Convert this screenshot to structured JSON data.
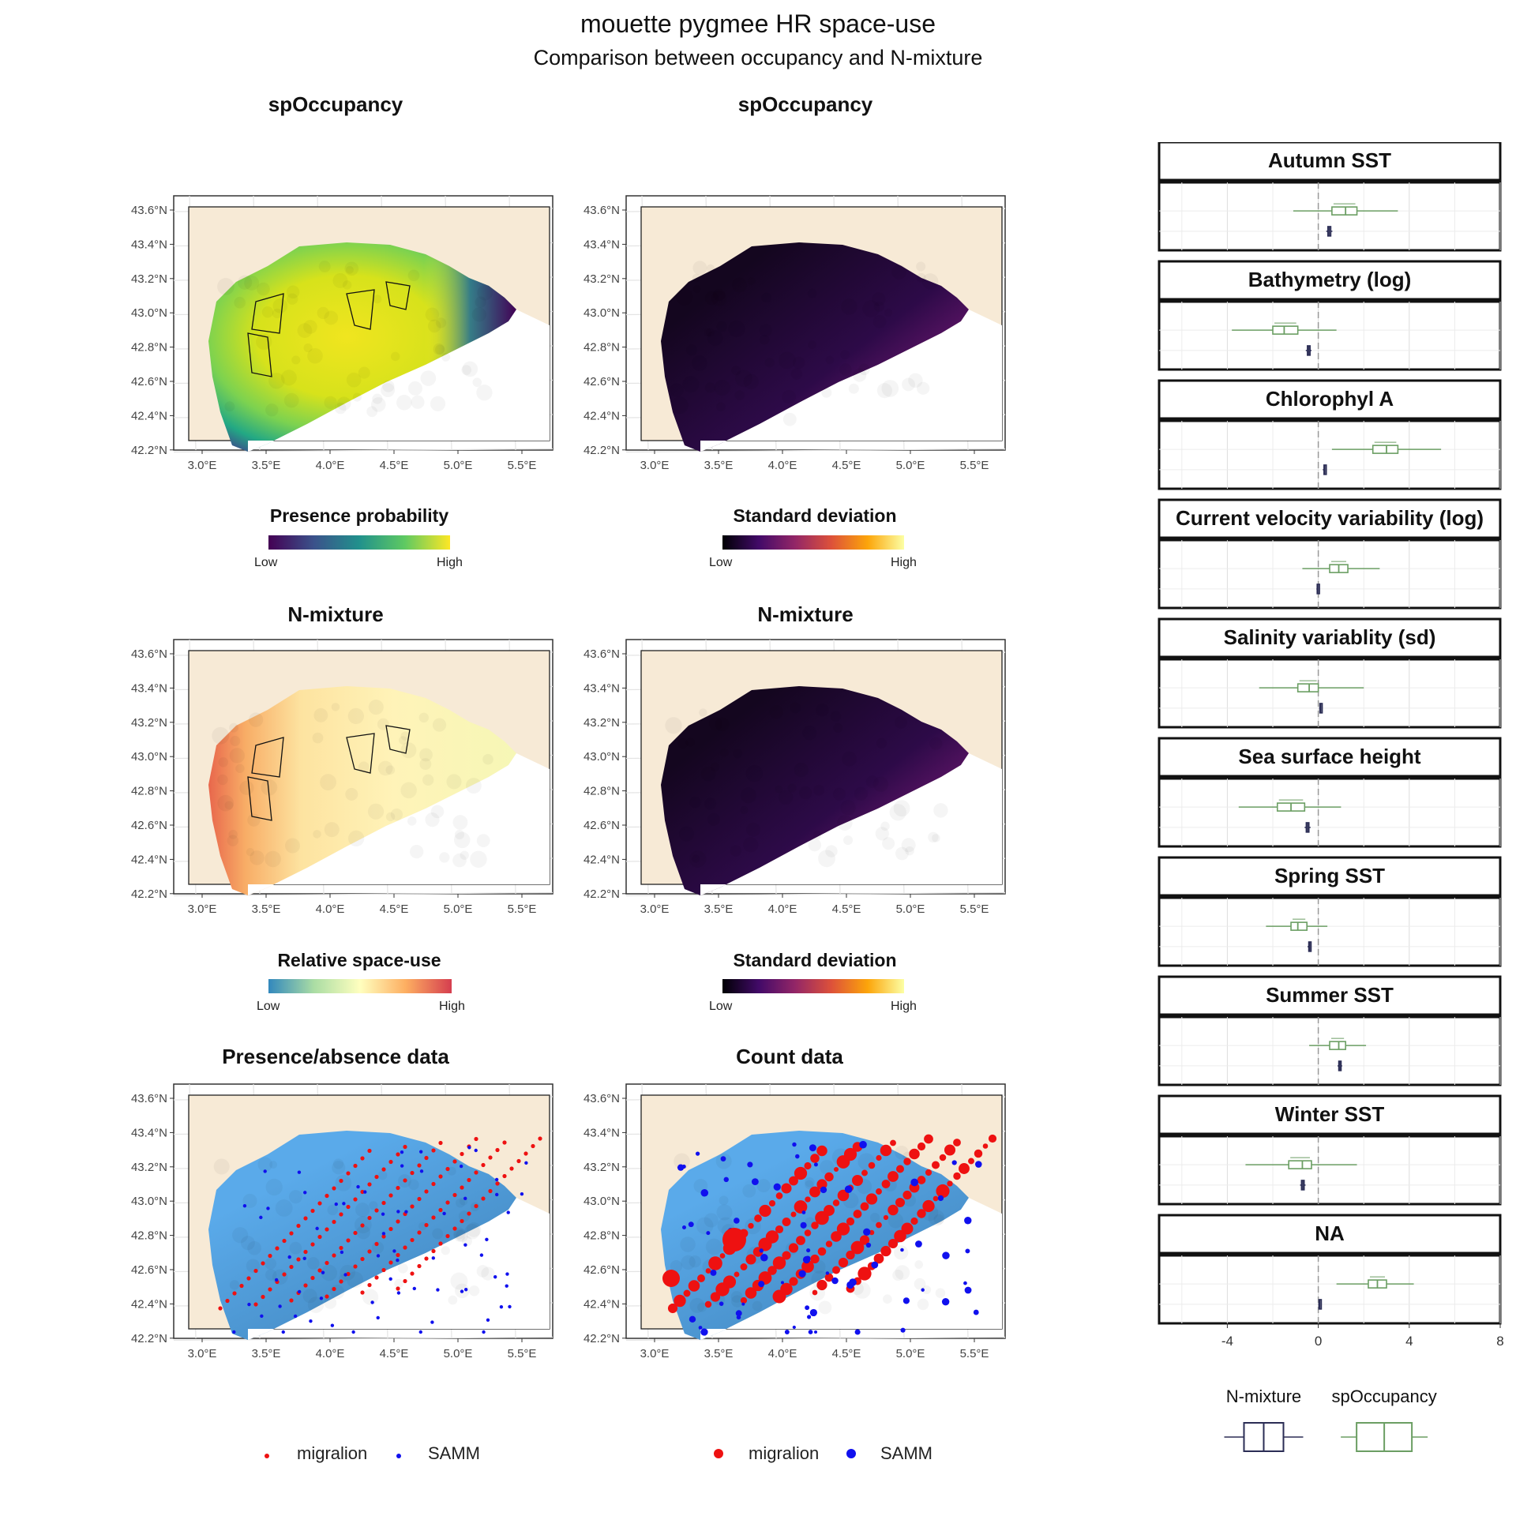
{
  "title": "mouette pygmee HR space-use",
  "subtitle": "Comparison between occupancy and N-mixture",
  "colors": {
    "land": "#f7ead6",
    "occupancy_green": "#6b9e63",
    "nmixture_navy": "#2b2d55",
    "points_red": "#ee1111",
    "points_blue": "#1010ee",
    "grid_blue": "#56a8e6"
  },
  "axes": {
    "lat_ticks": [
      "43.6°N",
      "43.4°N",
      "43.2°N",
      "43.0°N",
      "42.8°N",
      "42.6°N",
      "42.4°N",
      "42.2°N"
    ],
    "lon_ticks": [
      "3.0°E",
      "3.5°E",
      "4.0°E",
      "4.5°E",
      "5.0°E",
      "5.5°E"
    ]
  },
  "maps": [
    {
      "title": "spOccupancy",
      "legend": {
        "title": "Presence probability",
        "low": "Low",
        "high": "High",
        "palette": "viridis"
      }
    },
    {
      "title": "spOccupancy",
      "legend": {
        "title": "Standard deviation",
        "low": "Low",
        "high": "High",
        "palette": "inferno"
      }
    },
    {
      "title": "N-mixture",
      "legend": {
        "title": "Relative space-use",
        "low": "Low",
        "high": "High",
        "palette": "spectral"
      }
    },
    {
      "title": "N-mixture",
      "legend": {
        "title": "Standard deviation",
        "low": "Low",
        "high": "High",
        "palette": "inferno"
      }
    },
    {
      "title": "Presence/absence data",
      "legend": {
        "items": [
          "migralion",
          "SAMM"
        ]
      }
    },
    {
      "title": "Count data",
      "legend": {
        "items": [
          "migralion",
          "SAMM"
        ]
      }
    }
  ],
  "chart_data": {
    "type": "boxplot",
    "x_ticks": [
      -4,
      0,
      4,
      8
    ],
    "xlim": [
      -7,
      8
    ],
    "reference_line": 0,
    "legend": {
      "items": [
        "N-mixture",
        "spOccupancy"
      ],
      "placement": "bottom"
    },
    "facets": [
      {
        "label": "Autumn SST",
        "spOccupancy": {
          "min": -1.1,
          "q1": 0.6,
          "median": 1.2,
          "q3": 1.7,
          "max": 3.5
        },
        "N-mixture": {
          "min": 0.35,
          "q1": 0.42,
          "median": 0.48,
          "q3": 0.55,
          "max": 0.62
        }
      },
      {
        "label": "Bathymetry (log)",
        "spOccupancy": {
          "min": -3.8,
          "q1": -2.0,
          "median": -1.5,
          "q3": -0.9,
          "max": 0.8
        },
        "N-mixture": {
          "min": -0.55,
          "q1": -0.48,
          "median": -0.42,
          "q3": -0.36,
          "max": -0.3
        }
      },
      {
        "label": "Chlorophyl A",
        "spOccupancy": {
          "min": 0.6,
          "q1": 2.4,
          "median": 3.0,
          "q3": 3.5,
          "max": 5.4
        },
        "N-mixture": {
          "min": 0.2,
          "q1": 0.25,
          "median": 0.28,
          "q3": 0.32,
          "max": 0.36
        }
      },
      {
        "label": "Current velocity variability (log)",
        "spOccupancy": {
          "min": -0.7,
          "q1": 0.5,
          "median": 0.9,
          "q3": 1.3,
          "max": 2.7
        },
        "N-mixture": {
          "min": -0.08,
          "q1": -0.05,
          "median": -0.02,
          "q3": 0.01,
          "max": 0.04
        }
      },
      {
        "label": "Salinity variablity (sd)",
        "spOccupancy": {
          "min": -2.6,
          "q1": -0.9,
          "median": -0.4,
          "q3": 0.0,
          "max": 2.0
        },
        "N-mixture": {
          "min": 0.04,
          "q1": 0.07,
          "median": 0.1,
          "q3": 0.13,
          "max": 0.16
        }
      },
      {
        "label": "Sea surface height",
        "spOccupancy": {
          "min": -3.5,
          "q1": -1.8,
          "median": -1.2,
          "q3": -0.6,
          "max": 1.0
        },
        "N-mixture": {
          "min": -0.6,
          "q1": -0.53,
          "median": -0.47,
          "q3": -0.41,
          "max": -0.34
        }
      },
      {
        "label": "Spring SST",
        "spOccupancy": {
          "min": -2.3,
          "q1": -1.2,
          "median": -0.9,
          "q3": -0.5,
          "max": 0.4
        },
        "N-mixture": {
          "min": -0.47,
          "q1": -0.42,
          "median": -0.38,
          "q3": -0.34,
          "max": -0.3
        }
      },
      {
        "label": "Summer SST",
        "spOccupancy": {
          "min": -0.4,
          "q1": 0.5,
          "median": 0.9,
          "q3": 1.2,
          "max": 2.1
        },
        "N-mixture": {
          "min": 0.85,
          "q1": 0.9,
          "median": 0.95,
          "q3": 1.0,
          "max": 1.05
        }
      },
      {
        "label": "Winter SST",
        "spOccupancy": {
          "min": -3.2,
          "q1": -1.3,
          "median": -0.7,
          "q3": -0.3,
          "max": 1.7
        },
        "N-mixture": {
          "min": -0.8,
          "q1": -0.74,
          "median": -0.68,
          "q3": -0.62,
          "max": -0.56
        }
      },
      {
        "label": "NA",
        "spOccupancy": {
          "min": 0.8,
          "q1": 2.2,
          "median": 2.6,
          "q3": 3.0,
          "max": 4.2
        },
        "N-mixture": {
          "min": 0.0,
          "q1": 0.03,
          "median": 0.06,
          "q3": 0.09,
          "max": 0.12
        }
      }
    ]
  }
}
